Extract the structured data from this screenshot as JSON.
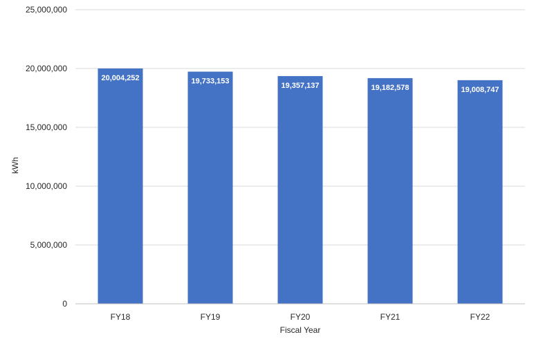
{
  "chart_data": {
    "type": "bar",
    "categories": [
      "FY18",
      "FY19",
      "FY20",
      "FY21",
      "FY22"
    ],
    "values": [
      20004252,
      19733153,
      19357137,
      19182578,
      19008747
    ],
    "data_labels": [
      "20,004,252",
      "19,733,153",
      "19,357,137",
      "19,182,578",
      "19,008,747"
    ],
    "xlabel": "Fiscal Year",
    "ylabel": "kWh",
    "ylim": [
      0,
      25000000
    ],
    "yticks": [
      0,
      5000000,
      10000000,
      15000000,
      20000000,
      25000000
    ],
    "ytick_labels": [
      "0",
      "5,000,000",
      "10,000,000",
      "15,000,000",
      "20,000,000",
      "25,000,000"
    ],
    "grid": true,
    "legend": "none",
    "colors": {
      "bar": "#4472c4",
      "grid": "#d9d9d9",
      "axis": "#bfbfbf",
      "text": "#262626",
      "label": "#ffffff"
    }
  }
}
